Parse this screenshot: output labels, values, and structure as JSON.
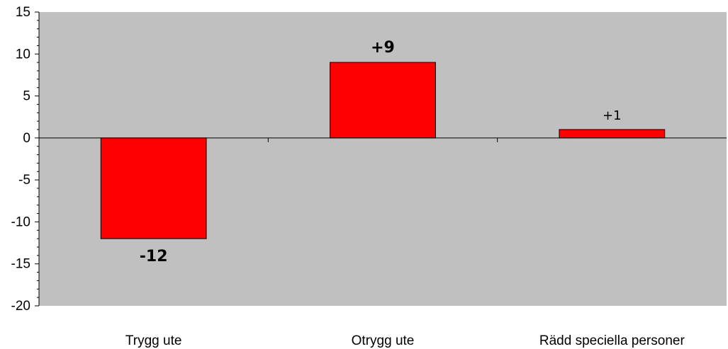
{
  "chart_data": {
    "type": "bar",
    "categories": [
      "Trygg ute",
      "Otrygg ute",
      "Rädd speciella personer"
    ],
    "values": [
      -12,
      9,
      1
    ],
    "data_labels": [
      "-12",
      "+9",
      "+1"
    ],
    "data_label_bold": [
      true,
      true,
      false
    ],
    "title": "",
    "xlabel": "",
    "ylabel": "",
    "ylim": [
      -20,
      15
    ],
    "yticks": [
      15,
      10,
      5,
      0,
      -5,
      -10,
      -15,
      -20
    ],
    "ytick_labels": [
      "15",
      "10",
      "5",
      "0",
      "-5",
      "-10",
      "-15",
      "-20"
    ],
    "grid": false,
    "legend": "none",
    "colors": {
      "bar_fill": "#ff0000",
      "bar_stroke": "#000000",
      "plot_background": "#c0c0c0",
      "axis": "#000000"
    }
  }
}
